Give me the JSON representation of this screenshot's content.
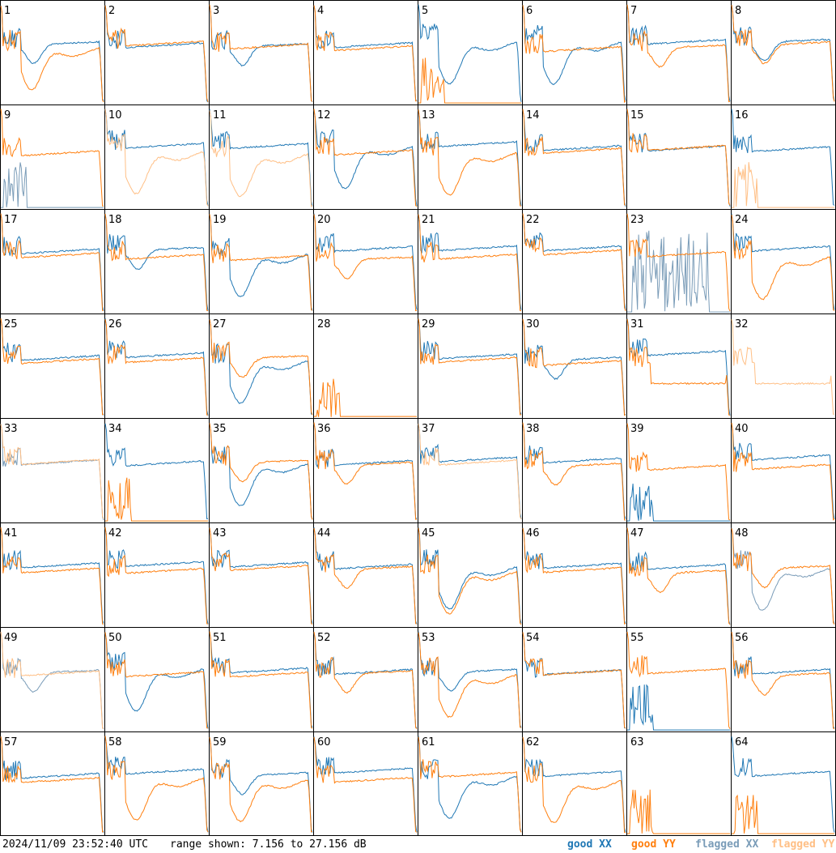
{
  "timestamp": "2024/11/09 23:52:40 UTC",
  "range_text": "range shown: 7.156 to 27.156 dB",
  "legend": {
    "good_xx": "good XX",
    "good_yy": "good YY",
    "flagged_xx": "flagged XX",
    "flagged_yy": "flagged YY"
  },
  "colors": {
    "good_xx": "#1f77b4",
    "good_yy": "#ff7f0e",
    "flagged_xx": "#7a9cb8",
    "flagged_yy": "#ffbf85"
  },
  "chart_data": {
    "type": "line",
    "layout": "8x8 small multiples",
    "y_range_db": [
      7.156,
      27.156
    ],
    "panels": [
      {
        "id": 1,
        "xx": "dip",
        "yy": "deepdip",
        "xf": false,
        "yf": false
      },
      {
        "id": 2,
        "xx": "flat",
        "yy": "flat",
        "xf": false,
        "yf": false
      },
      {
        "id": 3,
        "xx": "dip",
        "yy": "flat",
        "xf": false,
        "yf": false
      },
      {
        "id": 4,
        "xx": "flat",
        "yy": "flat",
        "xf": false,
        "yf": false
      },
      {
        "id": 5,
        "xx": "deepdip",
        "yy": "dead",
        "xf": false,
        "yf": false
      },
      {
        "id": 6,
        "xx": "deepdip",
        "yy": "flat",
        "xf": false,
        "yf": false
      },
      {
        "id": 7,
        "xx": "flat",
        "yy": "dip",
        "xf": false,
        "yf": false
      },
      {
        "id": 8,
        "xx": "dip",
        "yy": "dip",
        "xf": false,
        "yf": false
      },
      {
        "id": 9,
        "xx": "dead",
        "yy": "flat",
        "xf": true,
        "yf": false
      },
      {
        "id": 10,
        "xx": "flat",
        "yy": "deepdip",
        "xf": false,
        "yf": true
      },
      {
        "id": 11,
        "xx": "flat",
        "yy": "deepdip",
        "xf": false,
        "yf": true
      },
      {
        "id": 12,
        "xx": "deepdip",
        "yy": "flat",
        "xf": false,
        "yf": false
      },
      {
        "id": 13,
        "xx": "flat",
        "yy": "deepdip",
        "xf": false,
        "yf": false
      },
      {
        "id": 14,
        "xx": "flat",
        "yy": "flat",
        "xf": false,
        "yf": false
      },
      {
        "id": 15,
        "xx": "flat",
        "yy": "flat",
        "xf": false,
        "yf": false
      },
      {
        "id": 16,
        "xx": "flat",
        "yy": "dead",
        "xf": false,
        "yf": true
      },
      {
        "id": 17,
        "xx": "flat",
        "yy": "flat",
        "xf": false,
        "yf": false
      },
      {
        "id": 18,
        "xx": "dip",
        "yy": "flat",
        "xf": false,
        "yf": false
      },
      {
        "id": 19,
        "xx": "deepdip",
        "yy": "flat",
        "xf": false,
        "yf": false
      },
      {
        "id": 20,
        "xx": "flat",
        "yy": "dip",
        "xf": false,
        "yf": false
      },
      {
        "id": 21,
        "xx": "flat",
        "yy": "flat",
        "xf": false,
        "yf": false
      },
      {
        "id": 22,
        "xx": "flat",
        "yy": "flat",
        "xf": false,
        "yf": false
      },
      {
        "id": 23,
        "xx": "noise",
        "yy": "flat",
        "xf": true,
        "yf": false
      },
      {
        "id": 24,
        "xx": "flat",
        "yy": "deepdip",
        "xf": false,
        "yf": false
      },
      {
        "id": 25,
        "xx": "flat",
        "yy": "flat",
        "xf": false,
        "yf": false
      },
      {
        "id": 26,
        "xx": "flat",
        "yy": "flat",
        "xf": false,
        "yf": false
      },
      {
        "id": 27,
        "xx": "deepdip",
        "yy": "dip",
        "xf": false,
        "yf": false
      },
      {
        "id": 28,
        "xx": "none",
        "yy": "dead",
        "xf": false,
        "yf": false
      },
      {
        "id": 29,
        "xx": "flat",
        "yy": "flat",
        "xf": false,
        "yf": false
      },
      {
        "id": 30,
        "xx": "dip",
        "yy": "flat",
        "xf": false,
        "yf": false
      },
      {
        "id": 31,
        "xx": "flat",
        "yy": "step",
        "xf": false,
        "yf": false
      },
      {
        "id": 32,
        "xx": "none",
        "yy": "step",
        "xf": false,
        "yf": true
      },
      {
        "id": 33,
        "xx": "flat",
        "yy": "flat",
        "xf": true,
        "yf": true
      },
      {
        "id": 34,
        "xx": "flat",
        "yy": "dead",
        "xf": false,
        "yf": false
      },
      {
        "id": 35,
        "xx": "deepdip",
        "yy": "dip",
        "xf": false,
        "yf": false
      },
      {
        "id": 36,
        "xx": "flat",
        "yy": "dip",
        "xf": false,
        "yf": false
      },
      {
        "id": 37,
        "xx": "flat",
        "yy": "flat",
        "xf": false,
        "yf": true
      },
      {
        "id": 38,
        "xx": "flat",
        "yy": "dip",
        "xf": false,
        "yf": false
      },
      {
        "id": 39,
        "xx": "dead",
        "yy": "flat",
        "xf": false,
        "yf": false
      },
      {
        "id": 40,
        "xx": "flat",
        "yy": "flat",
        "xf": false,
        "yf": false
      },
      {
        "id": 41,
        "xx": "flat",
        "yy": "flat",
        "xf": false,
        "yf": false
      },
      {
        "id": 42,
        "xx": "flat",
        "yy": "flat",
        "xf": false,
        "yf": false
      },
      {
        "id": 43,
        "xx": "flat",
        "yy": "flat",
        "xf": false,
        "yf": false
      },
      {
        "id": 44,
        "xx": "flat",
        "yy": "dip",
        "xf": false,
        "yf": false
      },
      {
        "id": 45,
        "xx": "deepdip",
        "yy": "deepdip",
        "xf": false,
        "yf": false
      },
      {
        "id": 46,
        "xx": "flat",
        "yy": "flat",
        "xf": false,
        "yf": false
      },
      {
        "id": 47,
        "xx": "flat",
        "yy": "dip",
        "xf": false,
        "yf": false
      },
      {
        "id": 48,
        "xx": "deepdip",
        "yy": "dip",
        "xf": true,
        "yf": false
      },
      {
        "id": 49,
        "xx": "dip",
        "yy": "flat",
        "xf": true,
        "yf": true
      },
      {
        "id": 50,
        "xx": "deepdip",
        "yy": "flat",
        "xf": false,
        "yf": false
      },
      {
        "id": 51,
        "xx": "flat",
        "yy": "flat",
        "xf": false,
        "yf": false
      },
      {
        "id": 52,
        "xx": "flat",
        "yy": "dip",
        "xf": false,
        "yf": false
      },
      {
        "id": 53,
        "xx": "dip",
        "yy": "deepdip",
        "xf": false,
        "yf": false
      },
      {
        "id": 54,
        "xx": "flat",
        "yy": "flat",
        "xf": false,
        "yf": false
      },
      {
        "id": 55,
        "xx": "dead",
        "yy": "flat",
        "xf": false,
        "yf": false
      },
      {
        "id": 56,
        "xx": "flat",
        "yy": "dip",
        "xf": false,
        "yf": false
      },
      {
        "id": 57,
        "xx": "flat",
        "yy": "flat",
        "xf": false,
        "yf": false
      },
      {
        "id": 58,
        "xx": "flat",
        "yy": "deepdip",
        "xf": false,
        "yf": false
      },
      {
        "id": 59,
        "xx": "dip",
        "yy": "deepdip",
        "xf": false,
        "yf": false
      },
      {
        "id": 60,
        "xx": "flat",
        "yy": "flat",
        "xf": false,
        "yf": false
      },
      {
        "id": 61,
        "xx": "deepdip",
        "yy": "flat",
        "xf": false,
        "yf": false
      },
      {
        "id": 62,
        "xx": "flat",
        "yy": "deepdip",
        "xf": false,
        "yf": false
      },
      {
        "id": 63,
        "xx": "none",
        "yy": "dead",
        "xf": false,
        "yf": false
      },
      {
        "id": 64,
        "xx": "flat",
        "yy": "dead",
        "xf": false,
        "yf": false
      }
    ]
  }
}
